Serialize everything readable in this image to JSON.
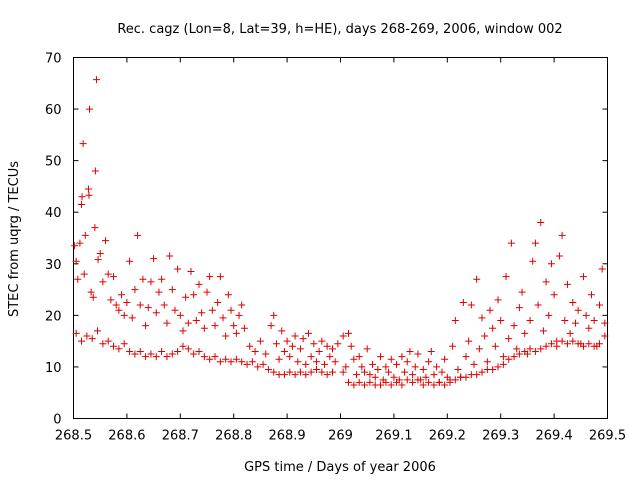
{
  "chart_data": {
    "type": "scatter",
    "title": "Rec. cagz (Lon=8, Lat=39, h=HE), days 268-269, 2006, window 002",
    "xlabel": "GPS time / Days of year 2006",
    "ylabel": "STEC from uqrg / TECUs",
    "xlim": [
      268.5,
      269.5
    ],
    "ylim": [
      0,
      70
    ],
    "x_ticks": [
      "268.5",
      "268.6",
      "268.7",
      "268.8",
      "268.9",
      "269",
      "269.1",
      "269.2",
      "269.3",
      "269.4",
      "269.5"
    ],
    "y_ticks": [
      "0",
      "10",
      "20",
      "30",
      "40",
      "50",
      "60",
      "70"
    ],
    "grid": false,
    "legend": "none",
    "marker": "plus",
    "color": "#dd0000",
    "series": [
      {
        "name": "STEC",
        "points": [
          [
            268.502,
            33.5
          ],
          [
            268.505,
            30.5
          ],
          [
            268.508,
            27.0
          ],
          [
            268.512,
            34.0
          ],
          [
            268.515,
            41.5
          ],
          [
            268.516,
            43.0
          ],
          [
            268.518,
            53.3
          ],
          [
            268.52,
            28.0
          ],
          [
            268.522,
            35.5
          ],
          [
            268.528,
            44.5
          ],
          [
            268.529,
            43.3
          ],
          [
            268.53,
            60.0
          ],
          [
            268.533,
            24.5
          ],
          [
            268.537,
            23.5
          ],
          [
            268.54,
            37.0
          ],
          [
            268.541,
            48.0
          ],
          [
            268.543,
            65.7
          ],
          [
            268.546,
            30.8
          ],
          [
            268.55,
            32.0
          ],
          [
            268.555,
            26.5
          ],
          [
            268.56,
            34.5
          ],
          [
            268.565,
            28.0
          ],
          [
            268.57,
            23.0
          ],
          [
            268.575,
            27.5
          ],
          [
            268.58,
            22.0
          ],
          [
            268.585,
            21.0
          ],
          [
            268.59,
            24.0
          ],
          [
            268.595,
            20.0
          ],
          [
            268.6,
            22.5
          ],
          [
            268.605,
            30.5
          ],
          [
            268.61,
            19.5
          ],
          [
            268.615,
            25.0
          ],
          [
            268.62,
            35.5
          ],
          [
            268.625,
            22.0
          ],
          [
            268.63,
            27.0
          ],
          [
            268.635,
            18.0
          ],
          [
            268.64,
            21.5
          ],
          [
            268.645,
            26.5
          ],
          [
            268.65,
            31.0
          ],
          [
            268.655,
            20.5
          ],
          [
            268.66,
            24.5
          ],
          [
            268.665,
            27.0
          ],
          [
            268.67,
            22.0
          ],
          [
            268.675,
            18.5
          ],
          [
            268.68,
            31.5
          ],
          [
            268.685,
            25.0
          ],
          [
            268.69,
            21.0
          ],
          [
            268.695,
            29.0
          ],
          [
            268.7,
            20.0
          ],
          [
            268.705,
            17.0
          ],
          [
            268.71,
            23.5
          ],
          [
            268.715,
            18.5
          ],
          [
            268.72,
            28.5
          ],
          [
            268.725,
            24.0
          ],
          [
            268.73,
            19.0
          ],
          [
            268.735,
            26.0
          ],
          [
            268.74,
            20.5
          ],
          [
            268.745,
            17.5
          ],
          [
            268.75,
            24.5
          ],
          [
            268.755,
            27.5
          ],
          [
            268.76,
            21.0
          ],
          [
            268.765,
            18.0
          ],
          [
            268.77,
            22.5
          ],
          [
            268.775,
            27.5
          ],
          [
            268.78,
            19.5
          ],
          [
            268.785,
            16.0
          ],
          [
            268.79,
            24.0
          ],
          [
            268.795,
            21.0
          ],
          [
            268.8,
            18.0
          ],
          [
            268.805,
            16.5
          ],
          [
            268.81,
            20.0
          ],
          [
            268.815,
            22.0
          ],
          [
            268.82,
            17.5
          ],
          [
            268.505,
            16.5
          ],
          [
            268.515,
            15.0
          ],
          [
            268.525,
            16.0
          ],
          [
            268.535,
            15.5
          ],
          [
            268.545,
            17.0
          ],
          [
            268.555,
            14.5
          ],
          [
            268.565,
            15.0
          ],
          [
            268.575,
            14.0
          ],
          [
            268.585,
            13.5
          ],
          [
            268.595,
            14.5
          ],
          [
            268.605,
            13.0
          ],
          [
            268.615,
            12.5
          ],
          [
            268.625,
            13.0
          ],
          [
            268.635,
            12.0
          ],
          [
            268.645,
            12.5
          ],
          [
            268.655,
            12.0
          ],
          [
            268.665,
            13.0
          ],
          [
            268.675,
            12.0
          ],
          [
            268.685,
            12.5
          ],
          [
            268.695,
            13.0
          ],
          [
            268.705,
            14.0
          ],
          [
            268.715,
            13.5
          ],
          [
            268.725,
            12.5
          ],
          [
            268.735,
            13.0
          ],
          [
            268.745,
            12.0
          ],
          [
            268.755,
            11.5
          ],
          [
            268.765,
            12.0
          ],
          [
            268.775,
            11.0
          ],
          [
            268.785,
            11.5
          ],
          [
            268.795,
            11.0
          ],
          [
            268.805,
            11.5
          ],
          [
            268.815,
            11.0
          ],
          [
            268.825,
            10.5
          ],
          [
            268.835,
            11.0
          ],
          [
            268.845,
            10.0
          ],
          [
            268.855,
            10.5
          ],
          [
            268.865,
            9.5
          ],
          [
            268.875,
            9.0
          ],
          [
            268.885,
            8.5
          ],
          [
            268.895,
            8.5
          ],
          [
            268.905,
            9.0
          ],
          [
            268.915,
            8.5
          ],
          [
            268.925,
            9.0
          ],
          [
            268.935,
            8.5
          ],
          [
            268.945,
            9.0
          ],
          [
            268.955,
            9.5
          ],
          [
            268.965,
            9.0
          ],
          [
            268.975,
            8.5
          ],
          [
            268.985,
            9.0
          ],
          [
            268.83,
            14.0
          ],
          [
            268.84,
            13.0
          ],
          [
            268.85,
            15.0
          ],
          [
            268.86,
            12.5
          ],
          [
            268.87,
            18.0
          ],
          [
            268.875,
            20.0
          ],
          [
            268.88,
            14.5
          ],
          [
            268.885,
            11.5
          ],
          [
            268.89,
            17.0
          ],
          [
            268.895,
            13.0
          ],
          [
            268.9,
            15.0
          ],
          [
            268.905,
            12.0
          ],
          [
            268.91,
            14.0
          ],
          [
            268.915,
            16.0
          ],
          [
            268.92,
            11.0
          ],
          [
            268.925,
            13.5
          ],
          [
            268.93,
            15.5
          ],
          [
            268.935,
            10.5
          ],
          [
            268.94,
            16.5
          ],
          [
            268.945,
            12.0
          ],
          [
            268.95,
            14.5
          ],
          [
            268.955,
            11.0
          ],
          [
            268.96,
            13.0
          ],
          [
            268.965,
            15.0
          ],
          [
            268.97,
            10.5
          ],
          [
            268.975,
            14.0
          ],
          [
            268.98,
            12.0
          ],
          [
            268.985,
            13.5
          ],
          [
            268.99,
            11.0
          ],
          [
            268.995,
            14.5
          ],
          [
            269.005,
            16.0
          ],
          [
            269.01,
            10.0
          ],
          [
            269.015,
            16.5
          ],
          [
            269.02,
            14.0
          ],
          [
            269.025,
            11.5
          ],
          [
            269.03,
            8.5
          ],
          [
            269.035,
            12.0
          ],
          [
            269.04,
            10.0
          ],
          [
            269.045,
            9.0
          ],
          [
            269.05,
            13.5
          ],
          [
            269.055,
            8.5
          ],
          [
            269.06,
            10.5
          ],
          [
            269.065,
            8.0
          ],
          [
            269.07,
            9.5
          ],
          [
            269.075,
            12.0
          ],
          [
            269.08,
            7.5
          ],
          [
            269.085,
            10.0
          ],
          [
            269.09,
            9.0
          ],
          [
            269.095,
            11.5
          ],
          [
            269.1,
            8.0
          ],
          [
            269.105,
            10.5
          ],
          [
            269.11,
            7.5
          ],
          [
            269.115,
            12.0
          ],
          [
            269.12,
            9.0
          ],
          [
            269.125,
            11.0
          ],
          [
            269.13,
            13.0
          ],
          [
            269.135,
            8.5
          ],
          [
            269.14,
            10.0
          ],
          [
            269.145,
            12.5
          ],
          [
            269.15,
            7.5
          ],
          [
            269.155,
            9.5
          ],
          [
            269.16,
            8.0
          ],
          [
            269.165,
            11.0
          ],
          [
            269.17,
            13.0
          ],
          [
            269.175,
            8.5
          ],
          [
            269.18,
            10.0
          ],
          [
            269.185,
            7.0
          ],
          [
            269.19,
            9.0
          ],
          [
            269.195,
            11.5
          ],
          [
            269.2,
            8.0
          ],
          [
            269.205,
            7.5
          ],
          [
            269.21,
            14.0
          ],
          [
            269.215,
            19.0
          ],
          [
            269.22,
            9.5
          ],
          [
            269.225,
            8.0
          ],
          [
            269.005,
            9.0
          ],
          [
            269.015,
            7.0
          ],
          [
            269.025,
            6.5
          ],
          [
            269.035,
            7.0
          ],
          [
            269.045,
            6.5
          ],
          [
            269.055,
            7.0
          ],
          [
            269.065,
            6.5
          ],
          [
            269.075,
            6.5
          ],
          [
            269.085,
            7.0
          ],
          [
            269.095,
            6.5
          ],
          [
            269.105,
            7.0
          ],
          [
            269.115,
            6.5
          ],
          [
            269.125,
            7.5
          ],
          [
            269.135,
            7.0
          ],
          [
            269.145,
            7.5
          ],
          [
            269.155,
            6.5
          ],
          [
            269.165,
            7.0
          ],
          [
            269.175,
            6.5
          ],
          [
            269.185,
            7.0
          ],
          [
            269.195,
            6.5
          ],
          [
            269.205,
            7.0
          ],
          [
            269.215,
            7.5
          ],
          [
            269.225,
            8.0
          ],
          [
            269.235,
            8.0
          ],
          [
            269.245,
            8.5
          ],
          [
            269.255,
            8.5
          ],
          [
            269.265,
            9.0
          ],
          [
            269.275,
            9.5
          ],
          [
            269.285,
            9.5
          ],
          [
            269.295,
            10.0
          ],
          [
            269.23,
            22.5
          ],
          [
            269.235,
            12.0
          ],
          [
            269.24,
            15.0
          ],
          [
            269.245,
            22.0
          ],
          [
            269.25,
            10.5
          ],
          [
            269.255,
            27.0
          ],
          [
            269.26,
            13.5
          ],
          [
            269.265,
            19.5
          ],
          [
            269.27,
            16.0
          ],
          [
            269.275,
            11.0
          ],
          [
            269.28,
            21.0
          ],
          [
            269.285,
            17.5
          ],
          [
            269.29,
            14.0
          ],
          [
            269.295,
            23.0
          ],
          [
            269.3,
            19.0
          ],
          [
            269.305,
            12.0
          ],
          [
            269.31,
            27.5
          ],
          [
            269.315,
            15.5
          ],
          [
            269.32,
            34.0
          ],
          [
            269.325,
            18.0
          ],
          [
            269.33,
            13.5
          ],
          [
            269.335,
            21.5
          ],
          [
            269.34,
            24.5
          ],
          [
            269.345,
            16.5
          ],
          [
            269.35,
            12.5
          ],
          [
            269.355,
            19.0
          ],
          [
            269.36,
            30.5
          ],
          [
            269.365,
            34.0
          ],
          [
            269.37,
            22.0
          ],
          [
            269.375,
            38.0
          ],
          [
            269.38,
            17.0
          ],
          [
            269.385,
            26.5
          ],
          [
            269.39,
            20.0
          ],
          [
            269.395,
            30.0
          ],
          [
            269.4,
            24.0
          ],
          [
            269.405,
            15.0
          ],
          [
            269.41,
            31.5
          ],
          [
            269.415,
            35.5
          ],
          [
            269.42,
            19.0
          ],
          [
            269.425,
            26.0
          ],
          [
            269.43,
            16.5
          ],
          [
            269.435,
            22.5
          ],
          [
            269.44,
            18.5
          ],
          [
            269.445,
            21.0
          ],
          [
            269.45,
            14.5
          ],
          [
            269.455,
            27.5
          ],
          [
            269.46,
            20.0
          ],
          [
            269.465,
            17.5
          ],
          [
            269.47,
            24.0
          ],
          [
            269.475,
            19.0
          ],
          [
            269.48,
            14.0
          ],
          [
            269.485,
            22.0
          ],
          [
            269.49,
            29.0
          ],
          [
            269.495,
            18.5
          ],
          [
            269.305,
            10.5
          ],
          [
            269.315,
            11.5
          ],
          [
            269.325,
            12.0
          ],
          [
            269.335,
            12.5
          ],
          [
            269.345,
            13.0
          ],
          [
            269.355,
            13.5
          ],
          [
            269.365,
            13.0
          ],
          [
            269.375,
            13.5
          ],
          [
            269.385,
            14.0
          ],
          [
            269.395,
            14.5
          ],
          [
            269.405,
            14.0
          ],
          [
            269.415,
            15.0
          ],
          [
            269.425,
            14.5
          ],
          [
            269.435,
            15.0
          ],
          [
            269.445,
            14.5
          ],
          [
            269.455,
            14.0
          ],
          [
            269.465,
            14.5
          ],
          [
            269.475,
            14.0
          ],
          [
            269.485,
            14.5
          ],
          [
            269.495,
            16.0
          ]
        ]
      }
    ]
  }
}
